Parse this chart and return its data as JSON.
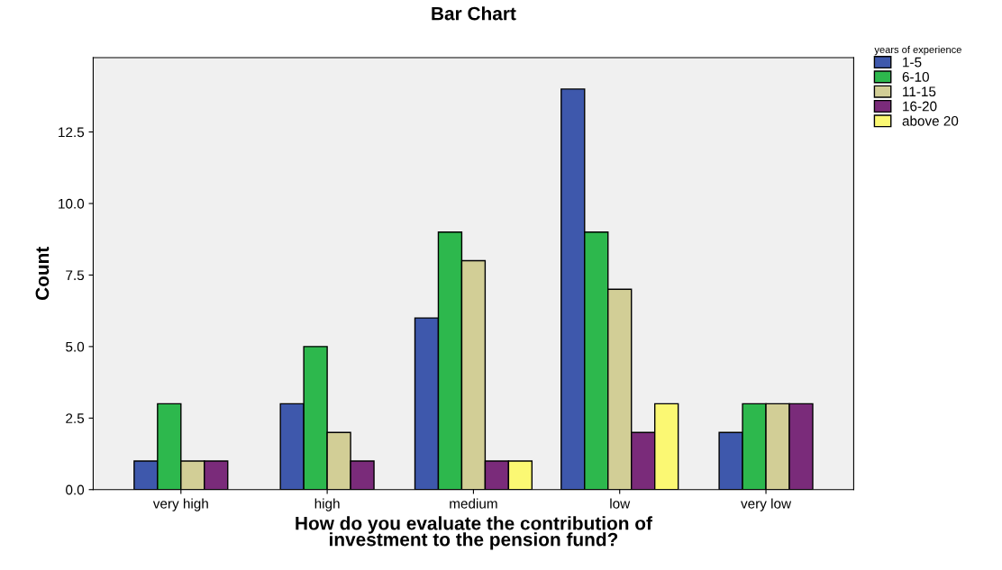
{
  "chart_data": {
    "type": "bar",
    "title": "Bar Chart",
    "xlabel": "How do you evaluate the contribution of\ninvestment to the pension fund?",
    "ylabel": "Count",
    "legend_title": "years of experience",
    "categories": [
      "very high",
      "high",
      "medium",
      "low",
      "very low"
    ],
    "series": [
      {
        "name": "1-5",
        "color": "#3e58ac",
        "values": [
          1,
          3,
          6,
          14,
          2
        ]
      },
      {
        "name": "6-10",
        "color": "#2db84d",
        "values": [
          3,
          5,
          9,
          9,
          3
        ]
      },
      {
        "name": "11-15",
        "color": "#d2ce96",
        "values": [
          1,
          2,
          8,
          7,
          3
        ]
      },
      {
        "name": "16-20",
        "color": "#7a2b7a",
        "values": [
          1,
          1,
          1,
          2,
          3
        ]
      },
      {
        "name": "above 20",
        "color": "#fbf873",
        "values": [
          null,
          null,
          1,
          3,
          null
        ]
      }
    ],
    "ylim": [
      0,
      15.1
    ],
    "yticks": [
      {
        "value": 0,
        "label": "0.0"
      },
      {
        "value": 2.5,
        "label": "2.5"
      },
      {
        "value": 5,
        "label": "5.0"
      },
      {
        "value": 7.5,
        "label": "7.5"
      },
      {
        "value": 10,
        "label": "10.0"
      },
      {
        "value": 12.5,
        "label": "12.5"
      }
    ],
    "grid": false,
    "legend": "top right"
  }
}
